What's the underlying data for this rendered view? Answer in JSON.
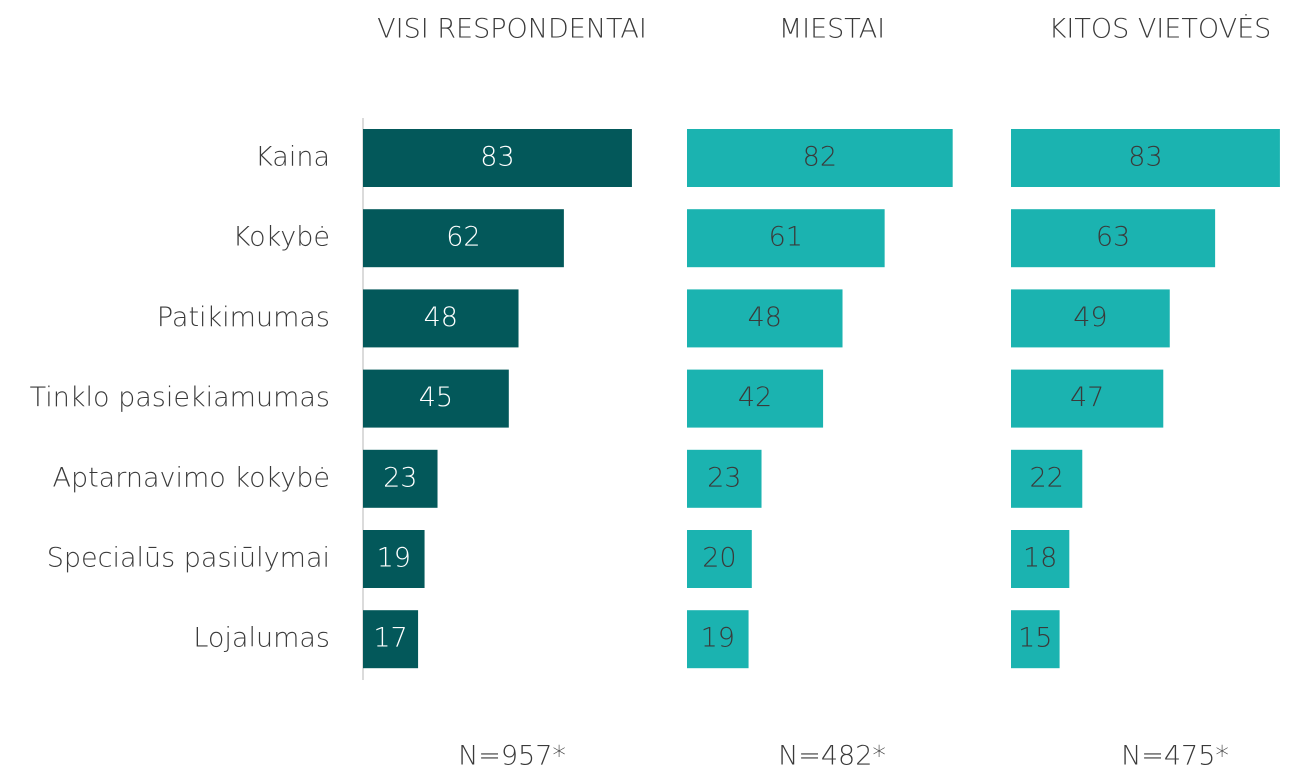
{
  "chart_data": {
    "type": "bar",
    "categories": [
      "Kaina",
      "Kokybė",
      "Patikimumas",
      "Tinklo pasiekiamumas",
      "Aptarnavimo kokybė",
      "Specialūs pasiūlymai",
      "Lojalumas"
    ],
    "series": [
      {
        "name": "VISI RESPONDENTAI",
        "color": "#03585a",
        "label_color": "#ffffff",
        "values": [
          83,
          62,
          48,
          45,
          23,
          19,
          17
        ],
        "annotation": "N=957*"
      },
      {
        "name": "MIESTAI",
        "color": "#1bb3b0",
        "label_color": "#3a3a3a",
        "values": [
          82,
          61,
          48,
          42,
          23,
          20,
          19
        ],
        "annotation": "N=482*"
      },
      {
        "name": "KITOS VIETOVĖS",
        "color": "#1bb3b0",
        "label_color": "#3a3a3a",
        "values": [
          83,
          63,
          49,
          47,
          22,
          18,
          15
        ],
        "annotation": "N=475*"
      }
    ]
  }
}
